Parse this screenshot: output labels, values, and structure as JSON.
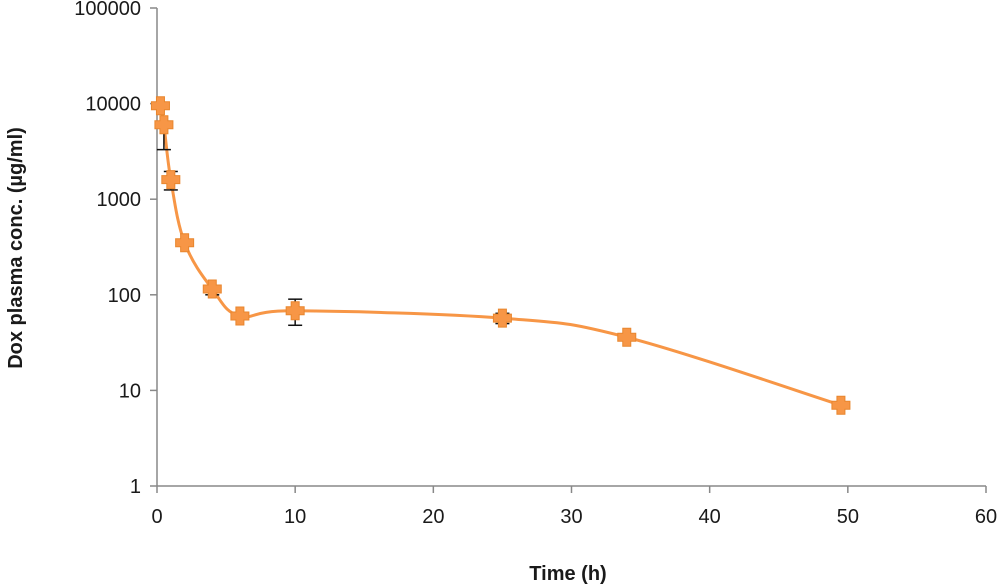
{
  "chart_data": {
    "type": "line",
    "title": "",
    "xlabel": "Time (h)",
    "ylabel": "Dox plasma conc.  (µg/ml)",
    "x_scale": "linear",
    "y_scale": "log",
    "xlim": [
      0,
      60
    ],
    "ylim": [
      1,
      100000
    ],
    "x_ticks": [
      "0",
      "10",
      "20",
      "30",
      "40",
      "50",
      "60"
    ],
    "y_ticks": [
      "1",
      "10",
      "100",
      "1000",
      "10000",
      "100000"
    ],
    "grid": false,
    "legend": "none",
    "series": [
      {
        "color": "#F79646",
        "marker": "diamond",
        "smooth": true,
        "x": [
          0.25,
          0.5,
          1,
          2,
          4,
          6,
          10,
          25,
          34,
          49.5
        ],
        "y": [
          9500,
          6000,
          1600,
          350,
          115,
          60,
          68,
          57,
          36,
          7
        ],
        "error_low": [
          null,
          3300,
          1250,
          null,
          100,
          null,
          48,
          50,
          null,
          null
        ],
        "error_high": [
          null,
          null,
          1950,
          null,
          null,
          null,
          90,
          64,
          null,
          null
        ]
      }
    ]
  }
}
